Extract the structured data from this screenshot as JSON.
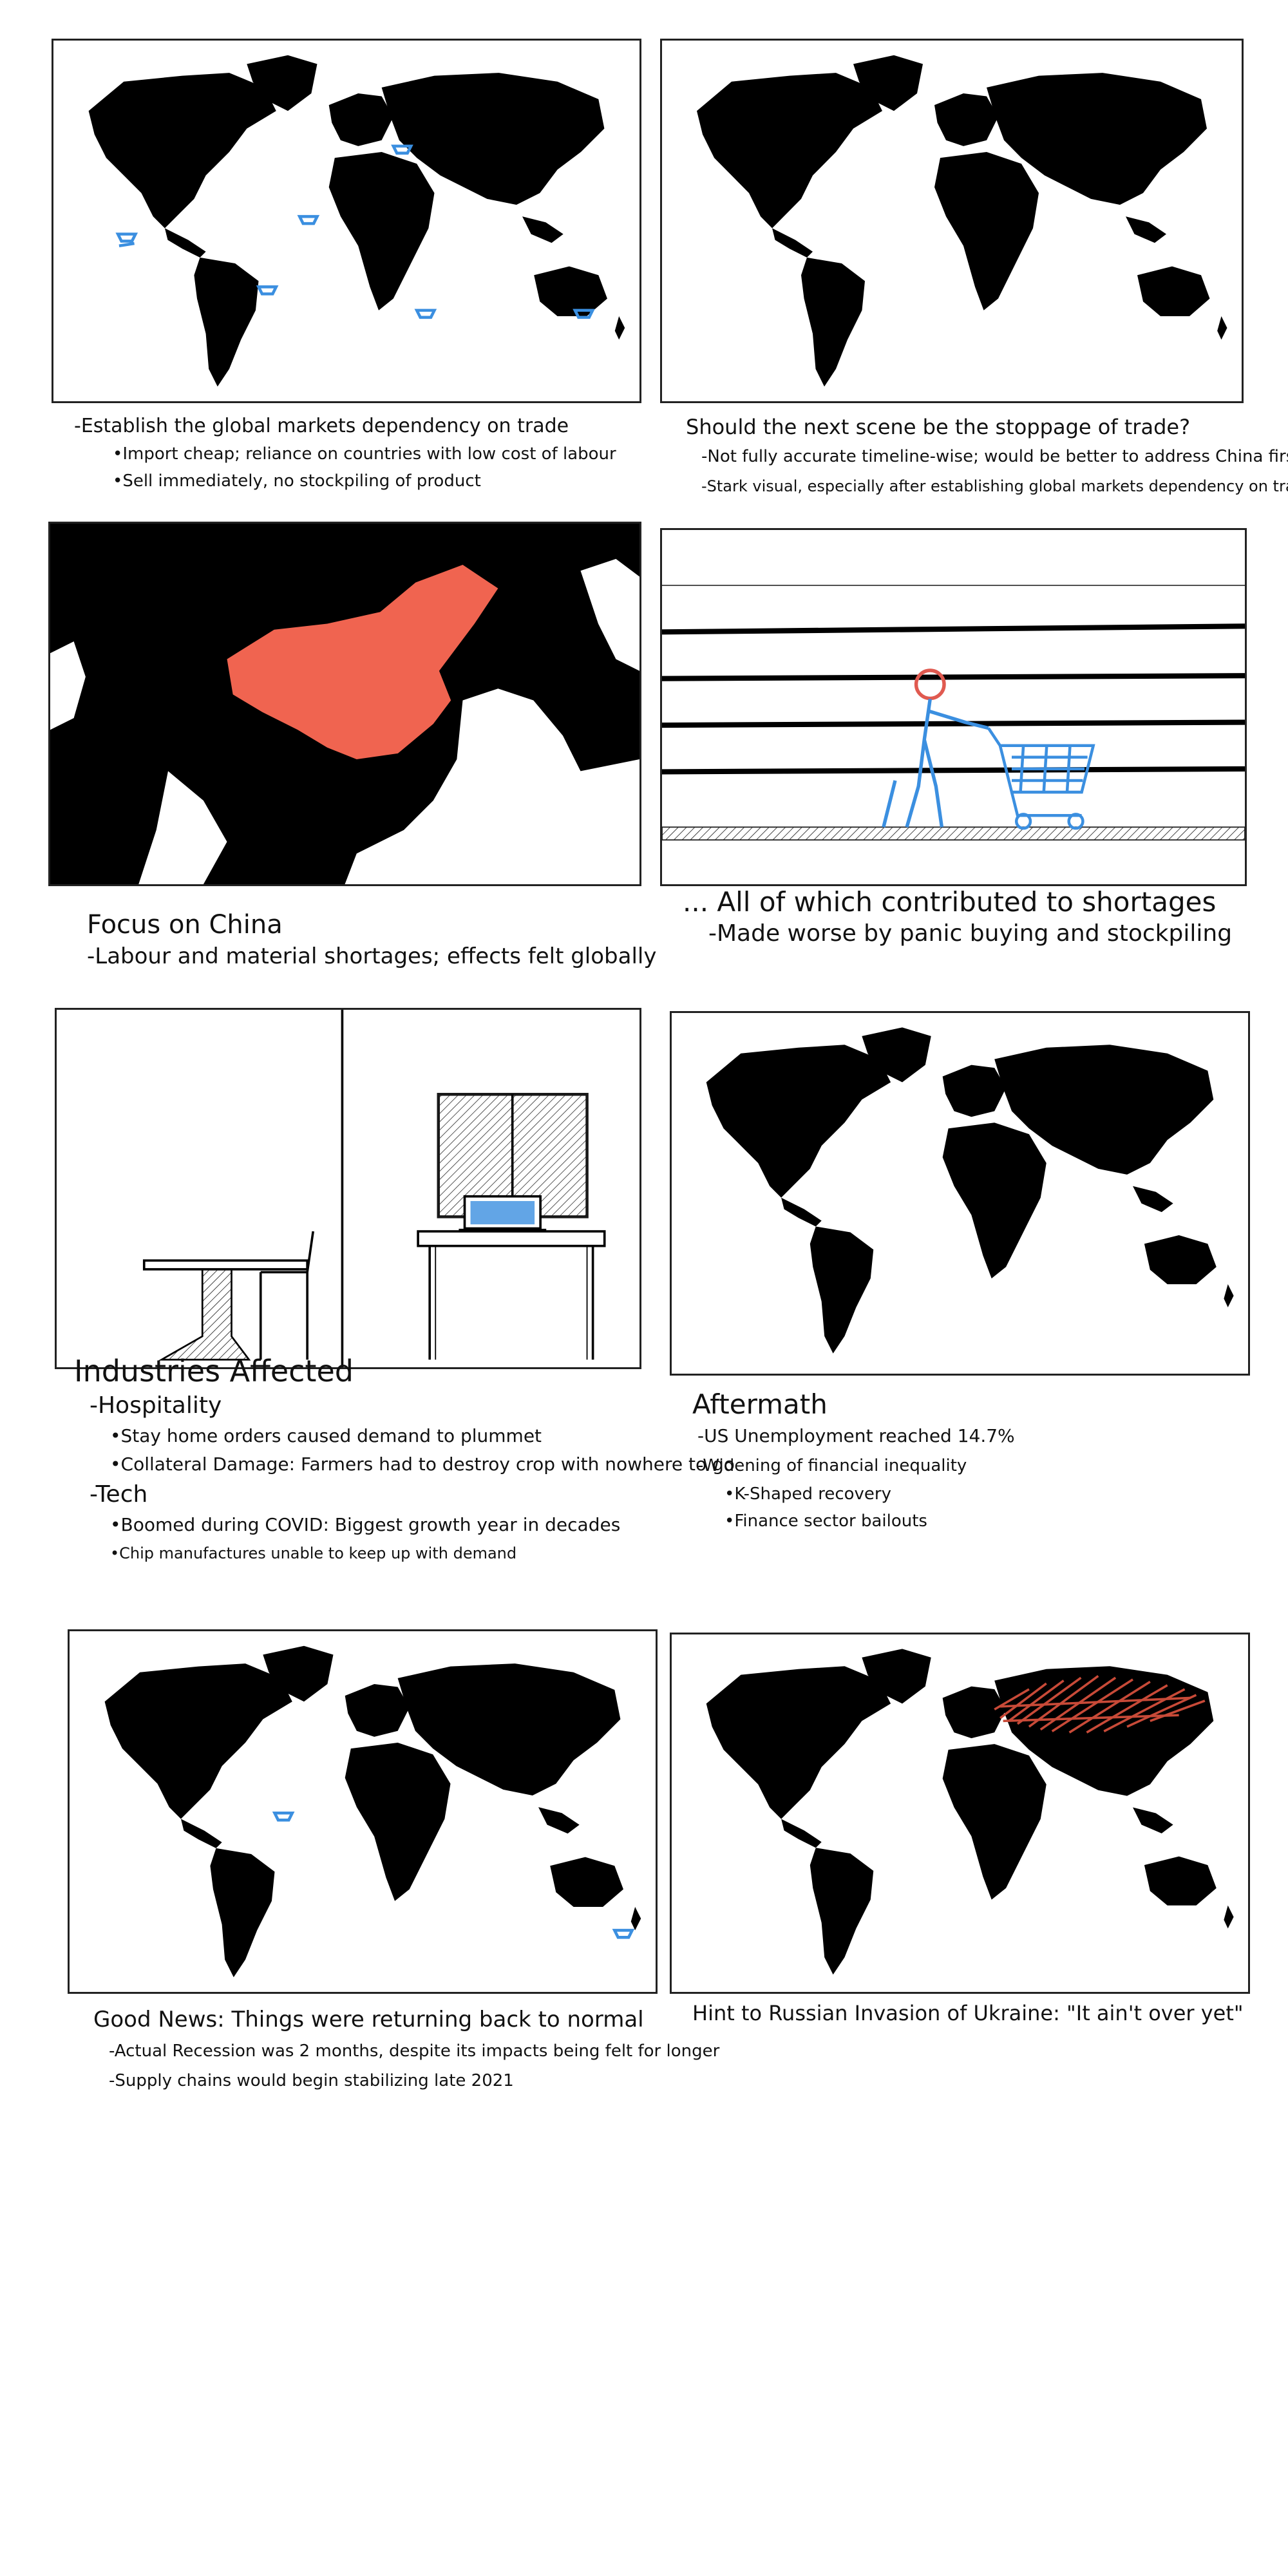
{
  "colors": {
    "ink": "#000000",
    "accent_blue": "#3b8fe0",
    "china_red": "#f06450",
    "russia_red": "#c84a38"
  },
  "icons": {
    "trade_ship": "ship-icon",
    "shopper": "shopper-figure-icon",
    "cart": "shopping-cart-icon",
    "laptop": "laptop-icon"
  },
  "panels": [
    {
      "id": "p1",
      "notes": {
        "title": "-Establish the global markets dependency on trade",
        "items": [
          "•Import cheap; reliance on countries with low cost of labour",
          "•Sell immediately, no stockpiling of product"
        ]
      }
    },
    {
      "id": "p2",
      "notes": {
        "title": "Should the next scene be the stoppage of trade?",
        "items": [
          "-Not fully accurate timeline-wise; would be better to address China first",
          "-Stark visual, especially after establishing global markets dependency on trade"
        ]
      }
    },
    {
      "id": "p3",
      "notes": {
        "title": "Focus on China",
        "items": [
          "-Labour and material shortages; effects felt globally"
        ]
      }
    },
    {
      "id": "p4",
      "notes": {
        "title": "... All of which contributed to shortages",
        "items": [
          "-Made worse by panic buying and stockpiling"
        ]
      }
    },
    {
      "id": "p5",
      "notes": {
        "title": "Industries Affected",
        "sections": [
          {
            "heading": "-Hospitality",
            "items": [
              "•Stay home orders caused demand to plummet",
              "•Collateral Damage: Farmers had to destroy crop with nowhere to go"
            ]
          },
          {
            "heading": "-Tech",
            "items": [
              "•Boomed during COVID: Biggest growth year in decades",
              "•Chip manufactures unable to keep up with demand"
            ]
          }
        ]
      }
    },
    {
      "id": "p6",
      "notes": {
        "title": "Aftermath",
        "items": [
          "-US Unemployment reached 14.7%",
          "-Widening of financial inequality"
        ],
        "subitems": [
          "•K-Shaped recovery",
          "•Finance sector bailouts"
        ]
      }
    },
    {
      "id": "p7",
      "notes": {
        "title": "Good News: Things were returning back to normal",
        "items": [
          "-Actual Recession was 2 months, despite its impacts being felt for longer",
          "-Supply chains would begin stabilizing late 2021"
        ]
      }
    },
    {
      "id": "p8",
      "notes": {
        "title": "Hint to Russian Invasion of Ukraine: \"It ain't over yet\""
      }
    }
  ]
}
